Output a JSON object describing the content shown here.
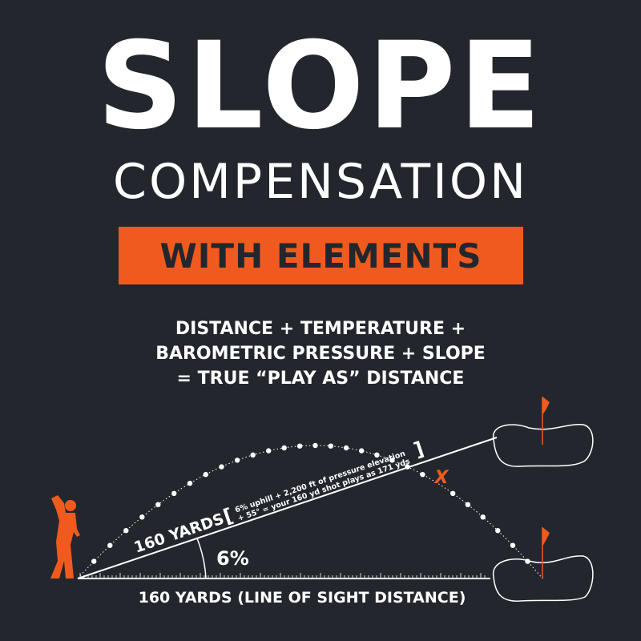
{
  "header": {
    "title": "SLOPE",
    "subtitle": "COMPENSATION",
    "badge": "WITH ELEMENTS"
  },
  "formula": {
    "line1": "DISTANCE + TEMPERATURE +",
    "line2": "BAROMETRIC PRESSURE + SLOPE",
    "line3": "= TRUE “PLAY AS” DISTANCE"
  },
  "diagram": {
    "slope_label": "160 YARDS",
    "note_line1": "6% uphill + 2,200 ft of pressure elevation",
    "note_line2": "+ 55° = your 160 yd shot plays as 171 yds",
    "angle_label": "6%",
    "baseline_label": "160 YARDS (LINE OF SIGHT DISTANCE)",
    "landing_mark": "X"
  },
  "colors": {
    "background": "#23272d",
    "accent": "#f15a1e",
    "text": "#ffffff"
  }
}
